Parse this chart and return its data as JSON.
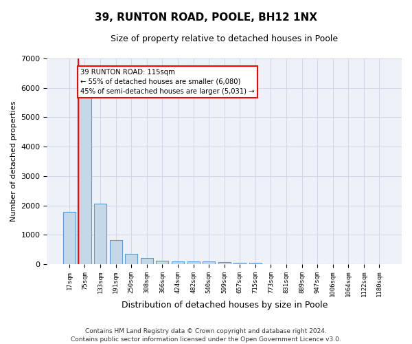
{
  "title": "39, RUNTON ROAD, POOLE, BH12 1NX",
  "subtitle": "Size of property relative to detached houses in Poole",
  "xlabel": "Distribution of detached houses by size in Poole",
  "ylabel": "Number of detached properties",
  "categories": [
    "17sqm",
    "75sqm",
    "133sqm",
    "191sqm",
    "250sqm",
    "308sqm",
    "366sqm",
    "424sqm",
    "482sqm",
    "540sqm",
    "599sqm",
    "657sqm",
    "715sqm",
    "773sqm",
    "831sqm",
    "889sqm",
    "947sqm",
    "1006sqm",
    "1064sqm",
    "1122sqm",
    "1180sqm"
  ],
  "values": [
    1780,
    5780,
    2060,
    820,
    360,
    210,
    130,
    100,
    95,
    85,
    70,
    60,
    55,
    0,
    0,
    0,
    0,
    0,
    0,
    0,
    0
  ],
  "bar_color": "#c5d8e8",
  "bar_edge_color": "#5b9bd5",
  "vline_color": "red",
  "annotation_text": "39 RUNTON ROAD: 115sqm\n← 55% of detached houses are smaller (6,080)\n45% of semi-detached houses are larger (5,031) →",
  "annotation_box_color": "white",
  "annotation_box_edge_color": "red",
  "ylim": [
    0,
    7000
  ],
  "yticks": [
    0,
    1000,
    2000,
    3000,
    4000,
    5000,
    6000,
    7000
  ],
  "grid_color": "#d0d8e8",
  "background_color": "#eef2f8",
  "footer": "Contains HM Land Registry data © Crown copyright and database right 2024.\nContains public sector information licensed under the Open Government Licence v3.0.",
  "title_fontsize": 11,
  "subtitle_fontsize": 9,
  "footer_fontsize": 6.5,
  "ylabel_fontsize": 8,
  "xlabel_fontsize": 9
}
